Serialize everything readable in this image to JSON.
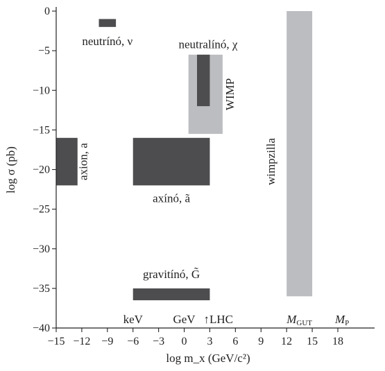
{
  "chart_data": {
    "type": "range-boxes",
    "xlabel": "log m_x (GeV/c²)",
    "ylabel": "log σ (pb)",
    "xlim": [
      -15,
      20
    ],
    "ylim": [
      -40,
      0
    ],
    "xticks": [
      -15,
      -12,
      -9,
      -6,
      -3,
      0,
      3,
      6,
      9,
      12,
      15,
      18
    ],
    "yticks": [
      0,
      -5,
      -10,
      -15,
      -20,
      -25,
      -30,
      -35,
      -40
    ],
    "colors": {
      "dark": "#4d4d4f",
      "light": "#bcbdc0"
    },
    "regions": [
      {
        "name": "neutrino",
        "label": "neutrínó, ν",
        "x": [
          -10,
          -8
        ],
        "y": [
          -2,
          -1
        ],
        "shade": "dark"
      },
      {
        "name": "wimp",
        "label": "WIMP",
        "x": [
          0.5,
          4.5
        ],
        "y": [
          -15.5,
          -5.5
        ],
        "shade": "light"
      },
      {
        "name": "neutralino",
        "label": "neutralínó, χ",
        "x": [
          1.5,
          3.0
        ],
        "y": [
          -12,
          -5.5
        ],
        "shade": "dark"
      },
      {
        "name": "axion",
        "label": "axion, a",
        "x": [
          -15,
          -12.5
        ],
        "y": [
          -22,
          -16
        ],
        "shade": "dark"
      },
      {
        "name": "axino",
        "label": "axínó, ã",
        "x": [
          -6,
          3
        ],
        "y": [
          -22,
          -16
        ],
        "shade": "dark"
      },
      {
        "name": "wimpzilla",
        "label": "wimpzilla",
        "x": [
          12,
          15
        ],
        "y": [
          -36,
          0
        ],
        "shade": "light"
      },
      {
        "name": "gravitino",
        "label": "gravitínó, G̃",
        "x": [
          -6,
          3
        ],
        "y": [
          -36.5,
          -35
        ],
        "shade": "dark"
      }
    ],
    "scale_markers": [
      {
        "name": "kev",
        "label": "keV",
        "x": -6,
        "arrow": ""
      },
      {
        "name": "gev",
        "label": "GeV",
        "x": 0,
        "arrow": ""
      },
      {
        "name": "lhc",
        "label": "LHC",
        "x": 4,
        "arrow": "↑"
      },
      {
        "name": "mgut",
        "label": "M",
        "sub": "GUT",
        "x": 13.5,
        "arrow": ""
      },
      {
        "name": "mp",
        "label": "M",
        "sub": "P",
        "x": 18.5,
        "arrow": ""
      }
    ]
  }
}
